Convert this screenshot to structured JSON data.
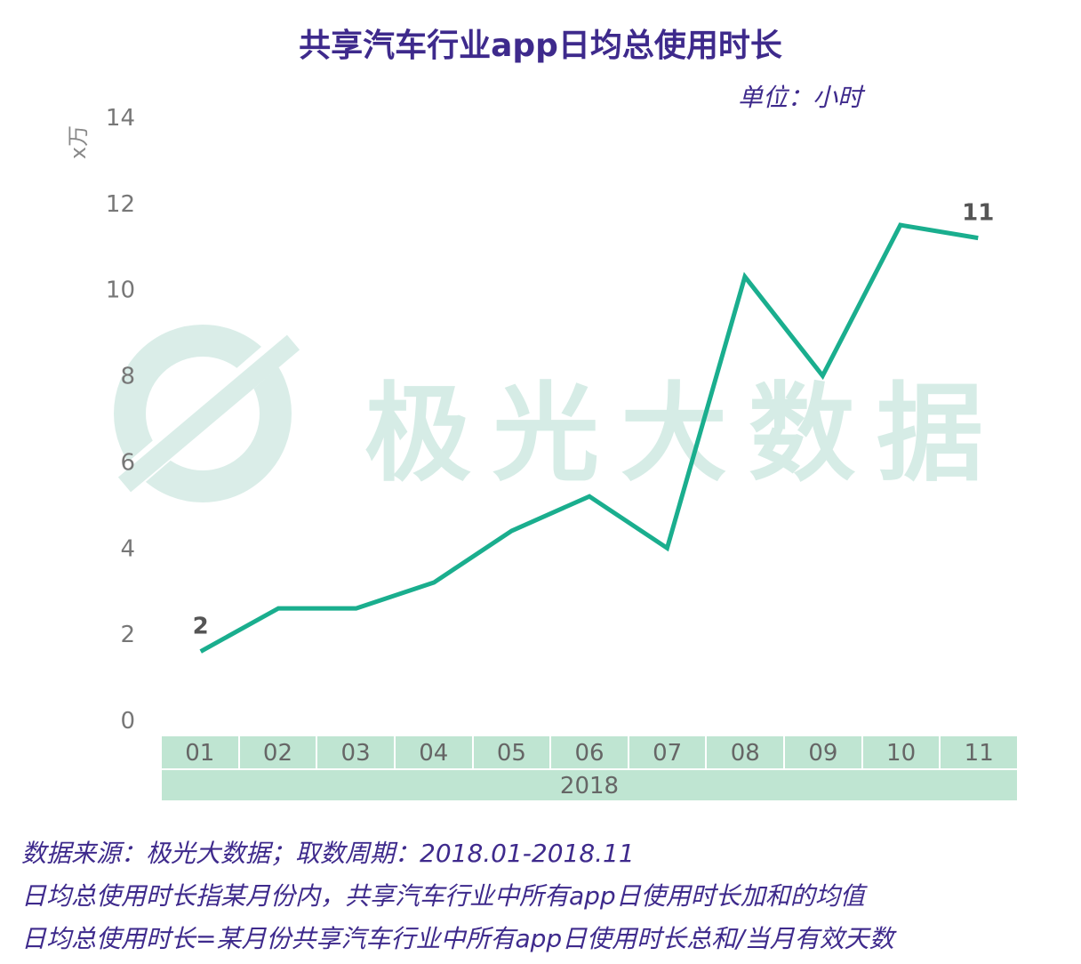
{
  "title": "共享汽车行业app日均总使用时长",
  "unit": "单位：小时",
  "watermark": "极光大数据",
  "chart_data": {
    "type": "line",
    "categories": [
      "01",
      "02",
      "03",
      "04",
      "05",
      "06",
      "07",
      "08",
      "09",
      "10",
      "11"
    ],
    "group_label": "2018",
    "series": [
      {
        "values": [
          1.6,
          2.6,
          2.6,
          3.2,
          4.4,
          5.2,
          4.0,
          10.3,
          8.0,
          11.5,
          11.2
        ]
      }
    ],
    "ylabel": "x万",
    "ylim": [
      0,
      14
    ],
    "yticks": [
      0,
      2,
      4,
      6,
      8,
      10,
      12,
      14
    ],
    "annotations": [
      {
        "index": 0,
        "text": "2"
      },
      {
        "index": 10,
        "text": "11"
      }
    ],
    "line_color": "#1aae8e",
    "grid": false
  },
  "notes": [
    "数据来源：极光大数据；取数周期：2018.01-2018.11",
    "日均总使用时长指某月份内，共享汽车行业中所有app日使用时长加和的均值",
    "日均总使用时长=某月份共享汽车行业中所有app日使用时长总和/当月有效天数"
  ]
}
